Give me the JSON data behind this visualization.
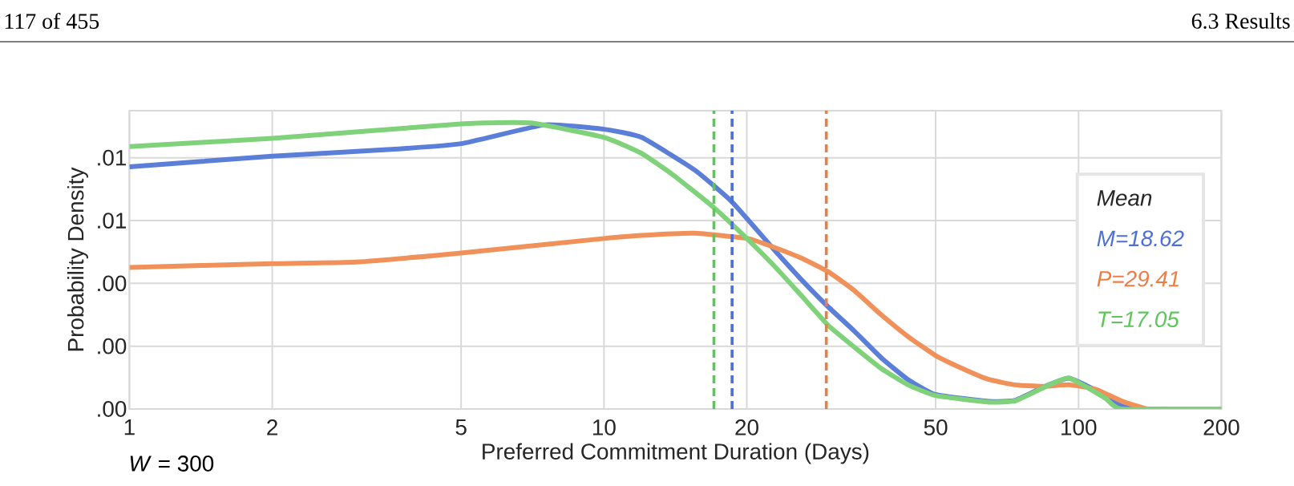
{
  "chart_data": {
    "type": "line",
    "xlabel": "Preferred Commitment Duration (Days)",
    "ylabel": "Probability Density",
    "log": "x",
    "xlim": [
      1,
      200
    ],
    "xticks": [
      1,
      2,
      5,
      10,
      20,
      50,
      100,
      200
    ],
    "ylim": [
      0,
      0.0095
    ],
    "yticks": [
      {
        "value": 0,
        "label": ".00"
      },
      {
        "value": 0.002,
        "label": ".00"
      },
      {
        "value": 0.004,
        "label": ".00"
      },
      {
        "value": 0.006,
        "label": ".01"
      },
      {
        "value": 0.008,
        "label": ".01"
      }
    ],
    "grid": true,
    "legend": "right",
    "legend_title": "Mean",
    "annotations": [
      "117 of 455",
      "6.3 Results",
      "*W* = 300"
    ],
    "series": [
      {
        "color": "#5b7fd8",
        "x": [
          1,
          2,
          3.5,
          5,
          7.5,
          10,
          12,
          15.5,
          18.6,
          22.9,
          26.1,
          29.7,
          33.7,
          38.4,
          43.7,
          49.9,
          64.7,
          73.6,
          83.8,
          95.4,
          108.6,
          123,
          133,
          200
        ],
        "values": [
          0.00771,
          0.00805,
          0.00826,
          0.00845,
          0.00905,
          0.00891,
          0.00865,
          0.00762,
          0.0066,
          0.00505,
          0.00411,
          0.00325,
          0.00248,
          0.00163,
          0.00094,
          0.00046,
          0.00024,
          0.00028,
          0.00068,
          0.00098,
          0.0006,
          0.0001,
          0,
          0
        ]
      },
      {
        "color": "#f0915a",
        "x": [
          1,
          2,
          3,
          5,
          10,
          12,
          15.5,
          20.1,
          22.9,
          26.1,
          29.7,
          33.7,
          38.4,
          43.7,
          49.9,
          56.9,
          64.7,
          73.6,
          83.8,
          95.4,
          108.6,
          123,
          140,
          160,
          200
        ],
        "values": [
          0.00451,
          0.00463,
          0.00468,
          0.00497,
          0.00543,
          0.00553,
          0.0056,
          0.00543,
          0.00514,
          0.0048,
          0.00437,
          0.00377,
          0.003,
          0.00231,
          0.00171,
          0.00129,
          0.00094,
          0.00077,
          0.00072,
          0.00077,
          0.00063,
          0.00026,
          0,
          0,
          0
        ]
      },
      {
        "color": "#7fd27a",
        "x": [
          1,
          2,
          5,
          7,
          10,
          12,
          14,
          17,
          20.1,
          22.9,
          26.1,
          29.7,
          33.7,
          38.4,
          43.7,
          49.9,
          64.7,
          73.6,
          83.8,
          95.4,
          114,
          123,
          200
        ],
        "values": [
          0.00836,
          0.00862,
          0.00908,
          0.00911,
          0.00865,
          0.00814,
          0.00745,
          0.00643,
          0.0054,
          0.00454,
          0.0036,
          0.00266,
          0.00197,
          0.00129,
          0.00077,
          0.00043,
          0.00022,
          0.00026,
          0.00066,
          0.00099,
          0.00034,
          0,
          0
        ]
      }
    ],
    "ref_lines": [
      {
        "axis": "x",
        "value": 18.62,
        "label": "M=18.62",
        "color": "#4f6fd6",
        "line_style": "dashed"
      },
      {
        "axis": "x",
        "value": 29.41,
        "label": "P=29.41",
        "color": "#ee7d45",
        "line_style": "dashed"
      },
      {
        "axis": "x",
        "value": 17.05,
        "label": "T=17.05",
        "color": "#5cc65a",
        "line_style": "dashed"
      }
    ]
  }
}
